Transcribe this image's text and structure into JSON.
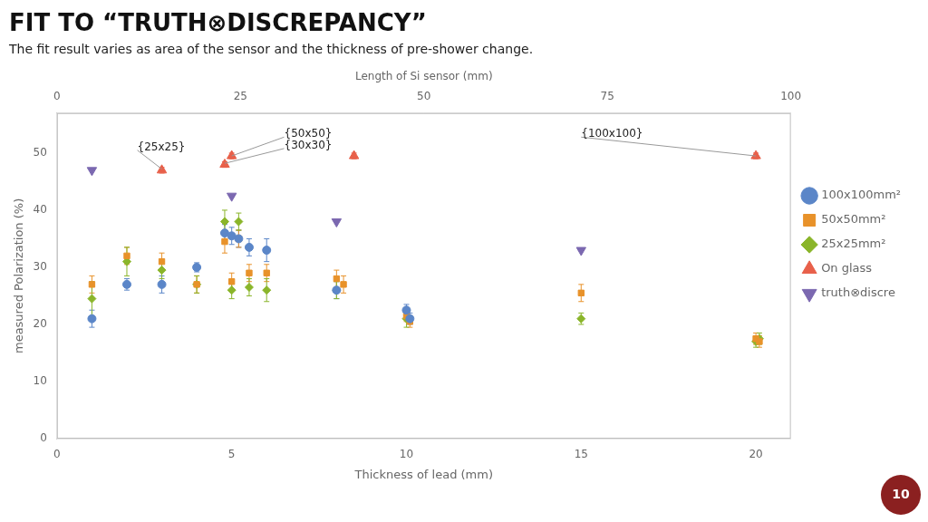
{
  "chart_data": {
    "type": "scatter",
    "title": "FIT TO “TRUTH⊗DISCREPANCY”",
    "subtitle": "The fit result varies as area of the sensor and the thickness of pre-shower change.",
    "xlabel": "Thickness of lead (mm)",
    "x2label": "Length of Si sensor (mm)",
    "ylabel": "measured Polarization (%)",
    "xlim": [
      0,
      21
    ],
    "xticks": [
      0,
      5,
      10,
      15,
      20
    ],
    "x2lim": [
      0,
      21
    ],
    "x2ticks": [
      {
        "value": 0,
        "label": "0"
      },
      {
        "value": 5.25,
        "label": "25"
      },
      {
        "value": 10.5,
        "label": "50"
      },
      {
        "value": 15.75,
        "label": "75"
      },
      {
        "value": 21.0,
        "label": "100"
      }
    ],
    "ylim": [
      0,
      57
    ],
    "yticks": [
      0,
      10,
      20,
      30,
      40,
      50
    ],
    "grid": false,
    "legend": "right",
    "series": [
      {
        "name": "100x100mm²",
        "color": "#5b86c8",
        "marker": "circle",
        "x": [
          1.0,
          2.0,
          3.0,
          4.0,
          4.8,
          5.0,
          5.2,
          5.5,
          6.0,
          8.0,
          10.0,
          10.1
        ],
        "values": [
          21.0,
          27.0,
          27.0,
          30.0,
          36.0,
          35.5,
          35.0,
          33.5,
          33.0,
          26.0,
          22.5,
          21.0
        ],
        "yerr": [
          1.5,
          1.0,
          1.5,
          0.8,
          1.5,
          1.5,
          1.5,
          1.5,
          2.0,
          1.5,
          1.0,
          1.0
        ]
      },
      {
        "name": "50x50mm²",
        "color": "#e8922a",
        "marker": "square",
        "x": [
          1.0,
          2.0,
          3.0,
          4.0,
          4.8,
          5.0,
          5.2,
          5.5,
          6.0,
          8.0,
          8.2,
          10.0,
          10.1,
          15.0,
          20.0,
          20.1
        ],
        "values": [
          27.0,
          32.0,
          31.0,
          27.0,
          34.5,
          27.5,
          35.0,
          29.0,
          29.0,
          28.0,
          27.0,
          21.5,
          20.5,
          25.5,
          17.5,
          17.0
        ],
        "yerr": [
          1.5,
          1.5,
          1.5,
          1.5,
          2.0,
          1.5,
          1.5,
          1.5,
          1.5,
          1.5,
          1.5,
          1.0,
          1.0,
          1.5,
          1.0,
          1.0
        ]
      },
      {
        "name": "25x25mm²",
        "color": "#8ab52a",
        "marker": "diamond",
        "x": [
          1.0,
          2.0,
          3.0,
          4.0,
          4.8,
          5.0,
          5.2,
          5.5,
          6.0,
          8.0,
          10.0,
          15.0,
          20.0,
          20.1
        ],
        "values": [
          24.5,
          31.0,
          29.5,
          27.0,
          38.0,
          26.0,
          38.0,
          26.5,
          26.0,
          26.0,
          21.0,
          21.0,
          17.0,
          17.5
        ],
        "yerr": [
          3.0,
          2.5,
          1.5,
          1.5,
          2.0,
          1.5,
          1.5,
          1.5,
          2.0,
          1.5,
          1.5,
          1.0,
          1.0,
          1.0
        ]
      },
      {
        "name": "On glass",
        "color": "#e8604a",
        "marker": "triangle_up",
        "x": [
          3.0,
          4.8,
          5.0,
          8.5,
          20.0
        ],
        "values": [
          47.0,
          48.0,
          49.5,
          49.5,
          49.5
        ],
        "yerr": [
          0.5,
          0.5,
          0.5,
          0.5,
          0.5
        ]
      },
      {
        "name": "truth⊗discre",
        "color": "#7b68b0",
        "marker": "triangle_down",
        "x": [
          1.0,
          5.0,
          8.0,
          15.0
        ],
        "values": [
          47.0,
          42.5,
          38.0,
          33.0
        ],
        "yerr": [
          0.0,
          0.0,
          0.0,
          0.0
        ]
      }
    ],
    "annotations": [
      {
        "text": "{25x25}",
        "x": 3.0,
        "y": 47.2,
        "text_x": 2.3,
        "text_y": 50.5
      },
      {
        "text": "{50x50}",
        "x": 5.0,
        "y": 49.5,
        "text_x": 6.5,
        "text_y": 52.8
      },
      {
        "text": "{30x30}",
        "x": 4.8,
        "y": 48.2,
        "text_x": 6.5,
        "text_y": 50.8
      },
      {
        "text": "{100x100}",
        "x": 20.0,
        "y": 49.5,
        "text_x": 15.0,
        "text_y": 52.8
      }
    ],
    "page_number": 10
  }
}
